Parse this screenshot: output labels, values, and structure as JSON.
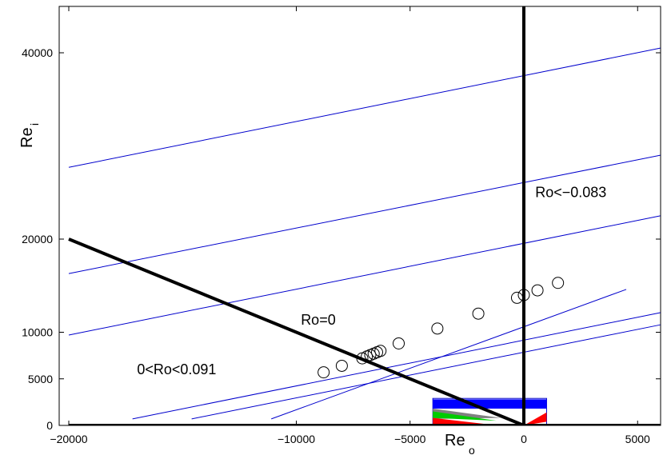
{
  "chart_data": {
    "type": "scatter",
    "title": "",
    "xlabel": "Re",
    "xlabel_sub": "o",
    "ylabel": "Re",
    "ylabel_sub": "i",
    "xlim": [
      -20000,
      6000
    ],
    "ylim": [
      0,
      45000
    ],
    "x_ticks": [
      {
        "value": -20000,
        "label": "−20000"
      },
      {
        "value": -10000,
        "label": "−10000"
      },
      {
        "value": -5000,
        "label": "−5000"
      },
      {
        "value": 0,
        "label": "0"
      },
      {
        "value": 5000,
        "label": "5000"
      }
    ],
    "y_ticks": [
      {
        "value": 0,
        "label": "0"
      },
      {
        "value": 5000,
        "label": "5000"
      },
      {
        "value": 10000,
        "label": "10000"
      },
      {
        "value": 20000,
        "label": "20000"
      },
      {
        "value": 40000,
        "label": "40000"
      }
    ],
    "grid": false,
    "boundary_lines": [
      {
        "name": "Ro=0 boundary",
        "x": [
          -20000,
          0
        ],
        "y": [
          20000,
          0
        ],
        "color": "#000000"
      },
      {
        "name": "Ro<−0.083 boundary",
        "x": [
          0,
          0
        ],
        "y": [
          0,
          45000
        ],
        "color": "#000000"
      },
      {
        "name": "Re_i = 0 axis",
        "x": [
          -20000,
          6000
        ],
        "y": [
          0,
          0
        ],
        "color": "#000000"
      }
    ],
    "parallel_lines": [
      {
        "x": [
          -20000,
          6000
        ],
        "y": [
          27700,
          40500
        ]
      },
      {
        "x": [
          -20000,
          6000
        ],
        "y": [
          16300,
          29000
        ]
      },
      {
        "x": [
          -20000,
          6000
        ],
        "y": [
          9700,
          22500
        ]
      },
      {
        "x": [
          -17200,
          6000
        ],
        "y": [
          700,
          12100
        ]
      },
      {
        "x": [
          -14600,
          6000
        ],
        "y": [
          700,
          10800
        ]
      },
      {
        "x": [
          -11100,
          4500
        ],
        "y": [
          700,
          14600
        ]
      }
    ],
    "parallel_line_color": "#0000cc",
    "points": [
      {
        "x": -8800,
        "y": 5700
      },
      {
        "x": -8000,
        "y": 6400
      },
      {
        "x": -7100,
        "y": 7200
      },
      {
        "x": -6900,
        "y": 7400
      },
      {
        "x": -6750,
        "y": 7550
      },
      {
        "x": -6600,
        "y": 7700
      },
      {
        "x": -6450,
        "y": 7850
      },
      {
        "x": -6300,
        "y": 8000
      },
      {
        "x": -5500,
        "y": 8800
      },
      {
        "x": -3800,
        "y": 10400
      },
      {
        "x": -2000,
        "y": 12000
      },
      {
        "x": -300,
        "y": 13700
      },
      {
        "x": 0,
        "y": 14000
      },
      {
        "x": 600,
        "y": 14500
      },
      {
        "x": 1500,
        "y": 15300
      }
    ],
    "regions_box": {
      "x": [
        -4000,
        1000
      ],
      "y": [
        0,
        2900
      ],
      "color": "#0000cc"
    },
    "regions": [
      {
        "name": "blue",
        "color": "#0000ff",
        "x": [
          -4000,
          1000,
          1000,
          -4000
        ],
        "y": [
          1800,
          1800,
          2800,
          2800
        ]
      },
      {
        "name": "gray",
        "color": "#808080",
        "x": [
          -4000,
          -1000,
          -4000
        ],
        "y": [
          1800,
          800,
          700
        ]
      },
      {
        "name": "green",
        "color": "#00cc00",
        "x": [
          -4000,
          -1200,
          -4000
        ],
        "y": [
          1500,
          500,
          800
        ]
      },
      {
        "name": "red",
        "color": "#ff0000",
        "x": [
          -4000,
          -1500,
          -4000
        ],
        "y": [
          800,
          100,
          50
        ]
      },
      {
        "name": "red-right",
        "color": "#ff0000",
        "x": [
          0,
          1000,
          1000
        ],
        "y": [
          0,
          400,
          1400
        ]
      }
    ],
    "annotations": [
      {
        "text": "Ro<−0.083",
        "x": 500,
        "y": 24500
      },
      {
        "text": "Ro=0",
        "x": -9800,
        "y": 10800
      },
      {
        "text": "0<Ro<0.091",
        "x": -17000,
        "y": 5500
      }
    ]
  }
}
